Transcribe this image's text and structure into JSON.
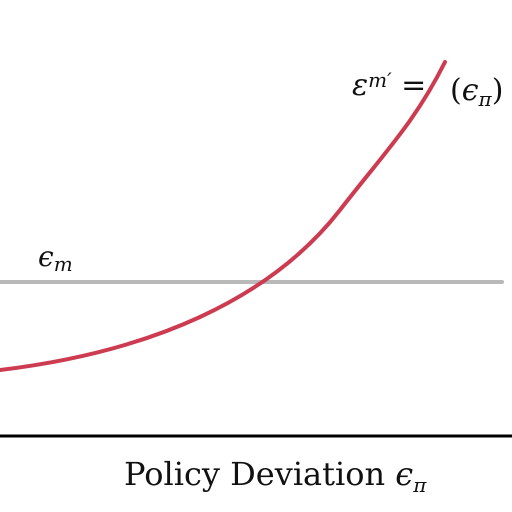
{
  "chart_data": {
    "type": "line",
    "xlabel_text": "Policy Deviation ",
    "xlabel_symbol": "ϵ",
    "xlabel_symbol_sub": "π",
    "hline": {
      "label_symbol": "ϵ",
      "label_sub": "m",
      "color": "#b9b9b9"
    },
    "curve": {
      "label_main": "ε",
      "label_sub": "m′",
      "label_eq": " = ",
      "label_arg_open": "(",
      "label_arg_symbol": "ϵ",
      "label_arg_sub": "π",
      "label_arg_close": ")",
      "color": "#cc3b50"
    },
    "axis_color": "#000000"
  }
}
